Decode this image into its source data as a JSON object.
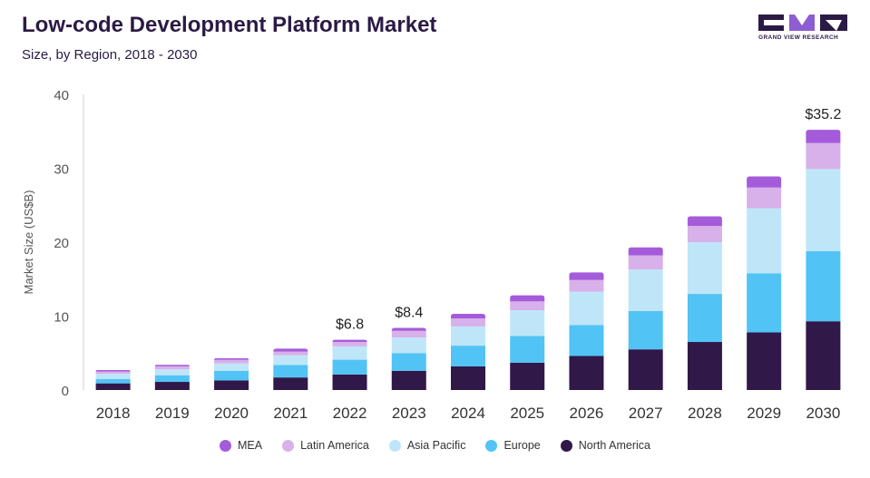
{
  "header": {
    "title": "Low-code Development Platform Market",
    "subtitle": "Size, by Region, 2018 - 2030"
  },
  "logo": {
    "text": "GRAND VIEW RESEARCH",
    "icon": "gvr-logo-icon"
  },
  "colors": {
    "mea": "#a45bd9",
    "latin_america": "#d8b0ea",
    "asia_pacific": "#bfe6f8",
    "europe": "#52c3f5",
    "north_america": "#301848",
    "axis_text": "#555555",
    "title": "#2b1a45"
  },
  "chart_data": {
    "type": "bar",
    "stacked": true,
    "title": "Low-code Development Platform Market",
    "subtitle": "Size, by Region, 2018 - 2030",
    "xlabel": "",
    "ylabel": "Market Size (US$B)",
    "ylim": [
      0,
      40
    ],
    "yticks": [
      0,
      10,
      20,
      30,
      40
    ],
    "grid": false,
    "legend_position": "bottom",
    "categories": [
      "2018",
      "2019",
      "2020",
      "2021",
      "2022",
      "2023",
      "2024",
      "2025",
      "2026",
      "2027",
      "2028",
      "2029",
      "2030"
    ],
    "series": [
      {
        "name": "North America",
        "key": "north_america",
        "values": [
          0.9,
          1.1,
          1.3,
          1.7,
          2.1,
          2.6,
          3.2,
          3.7,
          4.6,
          5.5,
          6.5,
          7.8,
          9.3
        ]
      },
      {
        "name": "Europe",
        "key": "europe",
        "values": [
          0.6,
          0.9,
          1.3,
          1.7,
          2.0,
          2.4,
          2.8,
          3.6,
          4.2,
          5.2,
          6.5,
          8.0,
          9.5
        ]
      },
      {
        "name": "Asia Pacific",
        "key": "asia_pacific",
        "values": [
          0.7,
          0.8,
          1.0,
          1.3,
          1.8,
          2.1,
          2.6,
          3.5,
          4.5,
          5.6,
          7.0,
          8.8,
          11.1
        ]
      },
      {
        "name": "Latin America",
        "key": "latin_america",
        "values": [
          0.3,
          0.4,
          0.5,
          0.5,
          0.6,
          0.9,
          1.1,
          1.2,
          1.6,
          1.9,
          2.2,
          2.8,
          3.5
        ]
      },
      {
        "name": "MEA",
        "key": "mea",
        "values": [
          0.2,
          0.2,
          0.2,
          0.4,
          0.3,
          0.4,
          0.6,
          0.8,
          1.0,
          1.1,
          1.3,
          1.5,
          1.8
        ]
      }
    ],
    "annotations": [
      {
        "category": "2022",
        "label": "$6.8"
      },
      {
        "category": "2023",
        "label": "$8.4"
      },
      {
        "category": "2030",
        "label": "$35.2"
      }
    ],
    "legend_order": [
      "MEA",
      "Latin America",
      "Asia Pacific",
      "Europe",
      "North America"
    ]
  }
}
